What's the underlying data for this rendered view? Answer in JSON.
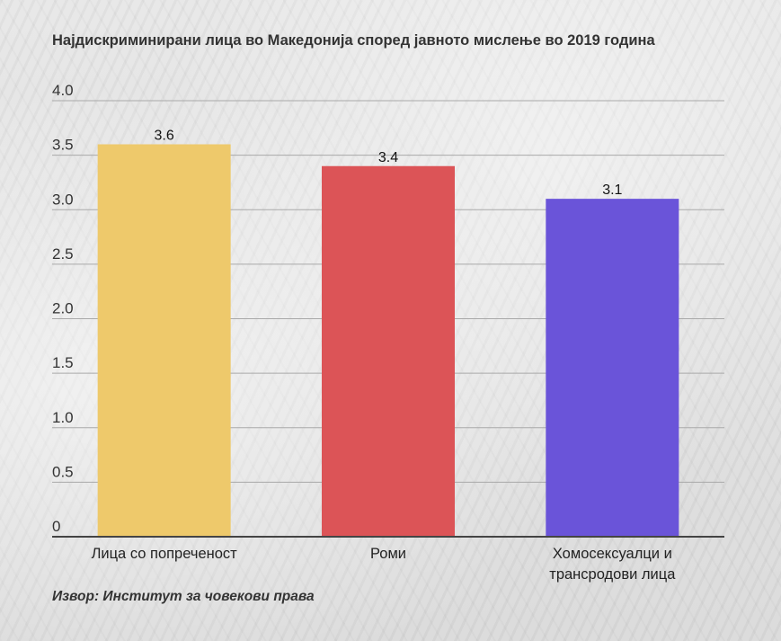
{
  "chart_data": {
    "type": "bar",
    "title": "Најдискриминирани лица во Македонија според јавното мислење во 2019 година",
    "categories": [
      [
        "Лица со попреченост"
      ],
      [
        "Роми"
      ],
      [
        "Хомосексуалци и",
        "трансродови лица"
      ]
    ],
    "values": [
      3.6,
      3.4,
      3.1
    ],
    "data_labels": [
      "3.6",
      "3.4",
      "3.1"
    ],
    "colors": [
      "#eec96b",
      "#dc5457",
      "#6a54d9"
    ],
    "ylim": [
      0,
      4.0
    ],
    "yticks": [
      0,
      0.5,
      1.0,
      1.5,
      2.0,
      2.5,
      3.0,
      3.5,
      4.0
    ],
    "ytick_labels": [
      "0",
      "0.5",
      "1.0",
      "1.5",
      "2.0",
      "2.5",
      "3.0",
      "3.5",
      "4.0"
    ],
    "xlabel": "",
    "ylabel": "",
    "grid": true,
    "legend": "none",
    "source": "Извор: Институт за човекови права"
  }
}
